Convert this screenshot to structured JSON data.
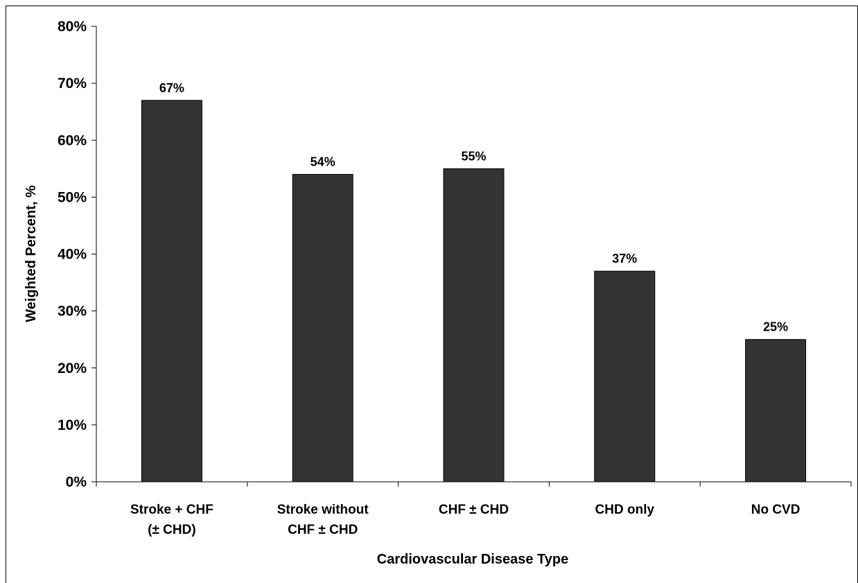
{
  "chart_data": {
    "type": "bar",
    "title": "",
    "xlabel": "Cardiovascular Disease Type",
    "ylabel": "Weighted Percent, %",
    "ylim": [
      0,
      80
    ],
    "yticks": [
      0,
      10,
      20,
      30,
      40,
      50,
      60,
      70,
      80
    ],
    "ytick_labels": [
      "0%",
      "10%",
      "20%",
      "30%",
      "40%",
      "50%",
      "60%",
      "70%",
      "80%"
    ],
    "categories": [
      [
        "Stroke + CHF",
        "(± CHD)"
      ],
      [
        "Stroke without",
        "CHF ± CHD"
      ],
      [
        "CHF ± CHD"
      ],
      [
        "CHD only"
      ],
      [
        "No CVD"
      ]
    ],
    "values": [
      67,
      54,
      55,
      37,
      25
    ],
    "data_labels": [
      "67%",
      "54%",
      "55%",
      "37%",
      "25%"
    ],
    "bar_color": "#333333",
    "grid": false,
    "legend": "none"
  }
}
